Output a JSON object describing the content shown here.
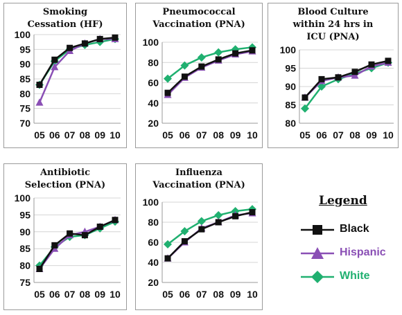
{
  "chart_data": [
    {
      "type": "line",
      "title": [
        "Smoking",
        "Cessation (HF)"
      ],
      "categories": [
        "05",
        "06",
        "07",
        "08",
        "09",
        "10"
      ],
      "ylim": [
        70,
        100
      ],
      "yticks": [
        "100",
        "95",
        "90",
        "85",
        "80",
        "75",
        "70"
      ],
      "series": [
        {
          "name": "Black",
          "values": [
            83,
            91.5,
            95.5,
            97,
            98.5,
            99
          ]
        },
        {
          "name": "Hispanic",
          "values": [
            77,
            89,
            94.5,
            97,
            98.5,
            98.5
          ]
        },
        {
          "name": "White",
          "values": [
            83,
            91,
            95,
            96.5,
            97.5,
            98.5
          ]
        }
      ]
    },
    {
      "type": "line",
      "title": [
        "Pneumococcal",
        "Vaccination (PNA)"
      ],
      "categories": [
        "05",
        "06",
        "07",
        "08",
        "09",
        "10"
      ],
      "ylim": [
        20,
        100
      ],
      "yticks": [
        "100",
        "80",
        "60",
        "40",
        "20"
      ],
      "series": [
        {
          "name": "Black",
          "values": [
            50,
            66,
            76,
            83,
            89,
            92
          ]
        },
        {
          "name": "Hispanic",
          "values": [
            48,
            65,
            75,
            82,
            88,
            91
          ]
        },
        {
          "name": "White",
          "values": [
            64,
            77,
            85,
            90,
            93,
            95
          ]
        }
      ]
    },
    {
      "type": "line",
      "title": [
        "Blood Culture",
        "within 24 hrs in",
        "ICU (PNA)"
      ],
      "categories": [
        "05",
        "06",
        "07",
        "08",
        "09",
        "10"
      ],
      "ylim": [
        80,
        100
      ],
      "yticks": [
        "100",
        "95",
        "90",
        "85",
        "80"
      ],
      "series": [
        {
          "name": "Black",
          "values": [
            87,
            92,
            92.5,
            94,
            96,
            97
          ]
        },
        {
          "name": "Hispanic",
          "values": [
            87,
            91.5,
            92.5,
            93,
            95.5,
            96.5
          ]
        },
        {
          "name": "White",
          "values": [
            84,
            90,
            92,
            93.5,
            95,
            96.5
          ]
        }
      ]
    },
    {
      "type": "line",
      "title": [
        "Antibiotic",
        "Selection (PNA)"
      ],
      "categories": [
        "05",
        "06",
        "07",
        "08",
        "09",
        "10"
      ],
      "ylim": [
        75,
        100
      ],
      "yticks": [
        "100",
        "95",
        "90",
        "85",
        "80",
        "75"
      ],
      "series": [
        {
          "name": "Black",
          "values": [
            79,
            86,
            89.5,
            89,
            91.5,
            93.5
          ]
        },
        {
          "name": "Hispanic",
          "values": [
            79,
            85,
            89,
            90,
            91.5,
            93.5
          ]
        },
        {
          "name": "White",
          "values": [
            80,
            85.5,
            88.5,
            89,
            91,
            93
          ]
        }
      ]
    },
    {
      "type": "line",
      "title": [
        "Influenza",
        "Vaccination (PNA)"
      ],
      "categories": [
        "05",
        "06",
        "07",
        "08",
        "09",
        "10"
      ],
      "ylim": [
        20,
        100
      ],
      "yticks": [
        "100",
        "80",
        "60",
        "40",
        "20"
      ],
      "series": [
        {
          "name": "Black",
          "values": [
            44,
            61,
            73,
            80,
            86,
            90
          ]
        },
        {
          "name": "Hispanic",
          "values": [
            44,
            60,
            74,
            80,
            87,
            89
          ]
        },
        {
          "name": "White",
          "values": [
            58,
            71,
            81,
            87,
            91,
            93
          ]
        }
      ]
    }
  ],
  "legend": {
    "title": "Legend",
    "items": [
      {
        "label": "Black",
        "marker": "square-icon",
        "color": "#111111"
      },
      {
        "label": "Hispanic",
        "marker": "triangle-icon",
        "color": "#8a4fb5"
      },
      {
        "label": "White",
        "marker": "diamond-icon",
        "color": "#20b070"
      }
    ]
  },
  "colors": {
    "Black": "#111111",
    "Hispanic": "#8a4fb5",
    "White": "#20b070"
  }
}
